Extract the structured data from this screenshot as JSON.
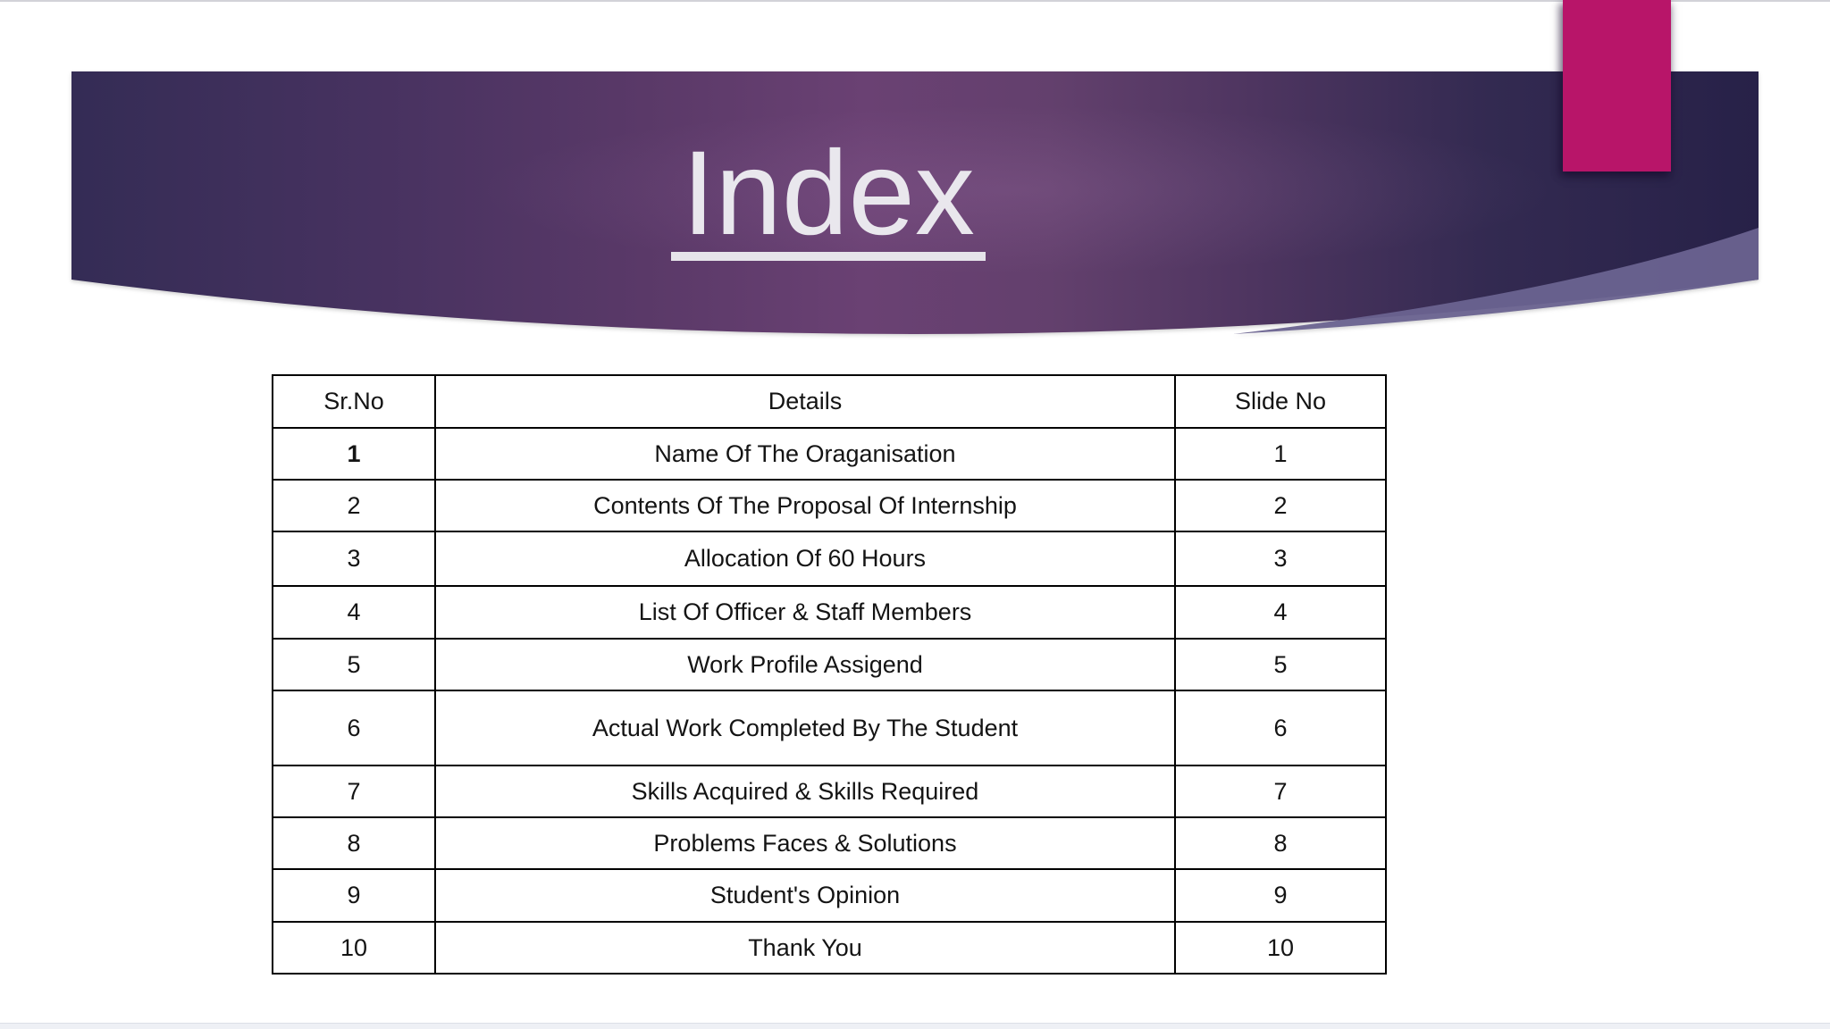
{
  "page": {
    "title": "Index"
  },
  "table": {
    "headers": [
      "Sr.No",
      "Details",
      "Slide No"
    ],
    "rows": [
      {
        "sr": "1",
        "details": "Name Of The Oraganisation",
        "slide_no": "1",
        "sr_bold": true
      },
      {
        "sr": "2",
        "details": "Contents Of The Proposal Of Internship",
        "slide_no": "2"
      },
      {
        "sr": "3",
        "details": "Allocation Of 60 Hours",
        "slide_no": "3"
      },
      {
        "sr": "4",
        "details": "List Of Officer & Staff Members",
        "slide_no": "4"
      },
      {
        "sr": "5",
        "details": "Work Profile Assigend",
        "slide_no": "5"
      },
      {
        "sr": "6",
        "details": "Actual Work Completed By The Student",
        "slide_no": "6"
      },
      {
        "sr": "7",
        "details": "Skills Acquired & Skills Required",
        "slide_no": "7"
      },
      {
        "sr": "8",
        "details": "Problems Faces & Solutions",
        "slide_no": "8"
      },
      {
        "sr": "9",
        "details": "Student's Opinion",
        "slide_no": "9"
      },
      {
        "sr": "10",
        "details": "Thank You",
        "slide_no": "10"
      }
    ]
  },
  "colors": {
    "accent_pink": "#b81569",
    "banner_dark_navy": "#272148",
    "banner_left_navy": "#342c55",
    "banner_purple": "#6a4173",
    "swoosh_lavender": "#6a6390",
    "title_text": "#e9e7ed",
    "table_border": "#000000"
  }
}
